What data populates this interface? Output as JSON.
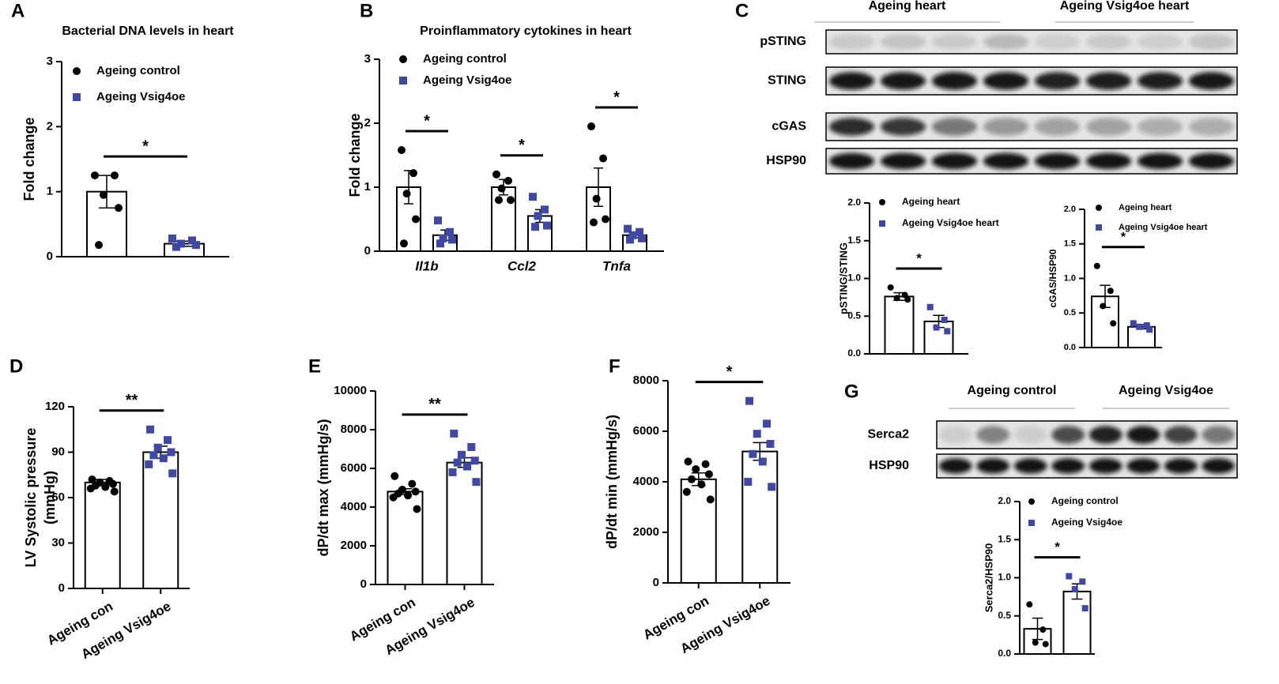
{
  "chart_data": [
    {
      "type": "bar",
      "panel": "A",
      "title": "Bacterial DNA levels in heart",
      "ylabel": "Fold change",
      "ylim": [
        0,
        3
      ],
      "yticks": [
        0,
        1,
        2,
        3
      ],
      "legend": true,
      "annotations": [
        "*"
      ],
      "series": [
        {
          "name": "Ageing control",
          "color": "#000000",
          "values": [
            1.0
          ],
          "errors": [
            0.25
          ],
          "points": [
            [
              1.25,
              1.25,
              0.95,
              0.75,
              0.18
            ]
          ]
        },
        {
          "name": "Ageing Vsig4oe",
          "color": "#3f48a3",
          "values": [
            0.2
          ],
          "errors": [
            0.04
          ],
          "points": [
            [
              0.28,
              0.25,
              0.2,
              0.18,
              0.15
            ]
          ]
        }
      ]
    },
    {
      "type": "bar",
      "panel": "B",
      "title": "Proinflammatory cytokines in heart",
      "ylabel": "Fold change",
      "categories": [
        "Il1b",
        "Ccl2",
        "Tnfa"
      ],
      "ylim": [
        0,
        3
      ],
      "yticks": [
        0,
        1,
        2,
        3
      ],
      "legend": true,
      "annotations": [
        "*",
        "*",
        "*"
      ],
      "series": [
        {
          "name": "Ageing control",
          "color": "#000000",
          "values": [
            1.0,
            1.0,
            1.0
          ],
          "errors": [
            0.26,
            0.12,
            0.3
          ],
          "points": [
            [
              1.58,
              1.22,
              0.9,
              0.5,
              0.12
            ],
            [
              1.2,
              1.1,
              0.98,
              0.8,
              0.8
            ],
            [
              1.95,
              1.45,
              0.82,
              0.5,
              0.45
            ]
          ]
        },
        {
          "name": "Ageing Vsig4oe",
          "color": "#3f48a3",
          "values": [
            0.25,
            0.55,
            0.25
          ],
          "errors": [
            0.08,
            0.1,
            0.04
          ],
          "points": [
            [
              0.48,
              0.3,
              0.2,
              0.18,
              0.12
            ],
            [
              0.85,
              0.65,
              0.55,
              0.4,
              0.38
            ],
            [
              0.35,
              0.3,
              0.25,
              0.2,
              0.18
            ]
          ]
        }
      ]
    },
    {
      "type": "blot",
      "panel": "C",
      "groups": [
        "Ageing heart",
        "Ageing Vsig4oe heart"
      ],
      "rows": [
        "pSTING",
        "STING",
        "cGAS",
        "HSP90"
      ]
    },
    {
      "type": "bar",
      "ylabel": "pSTING/STING",
      "ylim": [
        0,
        2
      ],
      "yticks": [
        {
          "value": 0,
          "label": "0.0"
        },
        0.5,
        {
          "value": 1,
          "label": "1.0"
        },
        1.5,
        {
          "value": 2,
          "label": "2.0"
        }
      ],
      "legend": true,
      "annotations": [
        "*"
      ],
      "series": [
        {
          "name": "Ageing heart",
          "color": "#000000",
          "values": [
            0.76
          ],
          "errors": [
            0.05
          ],
          "points": [
            [
              0.88,
              0.78,
              0.74,
              0.72
            ]
          ]
        },
        {
          "name": "Ageing Vsig4oe heart",
          "color": "#3f48a3",
          "values": [
            0.43
          ],
          "errors": [
            0.08
          ],
          "points": [
            [
              0.62,
              0.45,
              0.35,
              0.3
            ]
          ]
        }
      ]
    },
    {
      "type": "bar",
      "ylabel": "cGAS/HSP90",
      "ylim": [
        0,
        2
      ],
      "yticks": [
        {
          "value": 0,
          "label": "0.0"
        },
        0.5,
        {
          "value": 1,
          "label": "1.0"
        },
        1.5,
        {
          "value": 2,
          "label": "2.0"
        }
      ],
      "legend": true,
      "annotations": [
        "*"
      ],
      "series": [
        {
          "name": "Ageing heart",
          "color": "#000000",
          "values": [
            0.74
          ],
          "errors": [
            0.16
          ],
          "points": [
            [
              1.18,
              0.82,
              0.6,
              0.35
            ]
          ]
        },
        {
          "name": "Ageing Vsig4oe heart",
          "color": "#3f48a3",
          "values": [
            0.3
          ],
          "errors": [
            0.03
          ],
          "points": [
            [
              0.35,
              0.32,
              0.3,
              0.26
            ]
          ]
        }
      ]
    },
    {
      "type": "bar",
      "panel": "D",
      "ylabel": [
        "LV Systolic pressure",
        "(mmHg)"
      ],
      "categories": [
        "Ageing con",
        "Ageing Vsig4oe"
      ],
      "colors": [
        "#000000",
        "#3f48a3"
      ],
      "ylim": [
        0,
        120
      ],
      "yticks": [
        0,
        30,
        60,
        90,
        120
      ],
      "annotations": [
        "**"
      ],
      "values": [
        70,
        90
      ],
      "errors": [
        2,
        4
      ],
      "points": [
        [
          72,
          71,
          70,
          69,
          68,
          67,
          66,
          64
        ],
        [
          105,
          98,
          93,
          90,
          88,
          86,
          82,
          76
        ]
      ]
    },
    {
      "type": "bar",
      "panel": "E",
      "ylabel": "dP/dt max (mmHg/s)",
      "categories": [
        "Ageing con",
        "Ageing Vsig4oe"
      ],
      "colors": [
        "#000000",
        "#3f48a3"
      ],
      "ylim": [
        0,
        10000
      ],
      "yticks": [
        0,
        2000,
        4000,
        6000,
        8000,
        10000
      ],
      "annotations": [
        "**"
      ],
      "values": [
        4800,
        6300
      ],
      "errors": [
        150,
        250
      ],
      "points": [
        [
          5600,
          5200,
          4900,
          4800,
          4700,
          4600,
          4500,
          3900
        ],
        [
          7800,
          7100,
          6700,
          6400,
          6300,
          6100,
          5800,
          5300
        ]
      ]
    },
    {
      "type": "bar",
      "panel": "F",
      "ylabel": "dP/dt min (mmHg/s)",
      "categories": [
        "Ageing con",
        "Ageing Vsig4oe"
      ],
      "colors": [
        "#000000",
        "#3f48a3"
      ],
      "ylim": [
        0,
        8000
      ],
      "yticks": [
        0,
        2000,
        4000,
        6000,
        8000
      ],
      "annotations": [
        "*"
      ],
      "values": [
        4100,
        5200
      ],
      "errors": [
        250,
        350
      ],
      "points": [
        [
          4800,
          4700,
          4500,
          4300,
          4100,
          3900,
          3600,
          3300
        ],
        [
          7200,
          6300,
          5900,
          5500,
          5100,
          4800,
          4000,
          3800
        ]
      ]
    },
    {
      "type": "blot",
      "panel": "G",
      "groups": [
        "Ageing control",
        "Ageing Vsig4oe"
      ],
      "rows": [
        "Serca2",
        "HSP90"
      ]
    },
    {
      "type": "bar",
      "ylabel": "Serca2/HSP90",
      "ylim": [
        0,
        2
      ],
      "yticks": [
        {
          "value": 0,
          "label": "0.0"
        },
        0.5,
        {
          "value": 1,
          "label": "1.0"
        },
        1.5,
        {
          "value": 2,
          "label": "2.0"
        }
      ],
      "legend": true,
      "annotations": [
        "*"
      ],
      "series": [
        {
          "name": "Ageing control",
          "color": "#000000",
          "values": [
            0.33
          ],
          "errors": [
            0.14
          ],
          "points": [
            [
              0.65,
              0.32,
              0.15,
              0.13
            ]
          ]
        },
        {
          "name": "Ageing Vsig4oe",
          "color": "#3f48a3",
          "values": [
            0.82
          ],
          "errors": [
            0.1
          ],
          "points": [
            [
              1.02,
              0.95,
              0.85,
              0.6
            ]
          ]
        }
      ]
    }
  ]
}
